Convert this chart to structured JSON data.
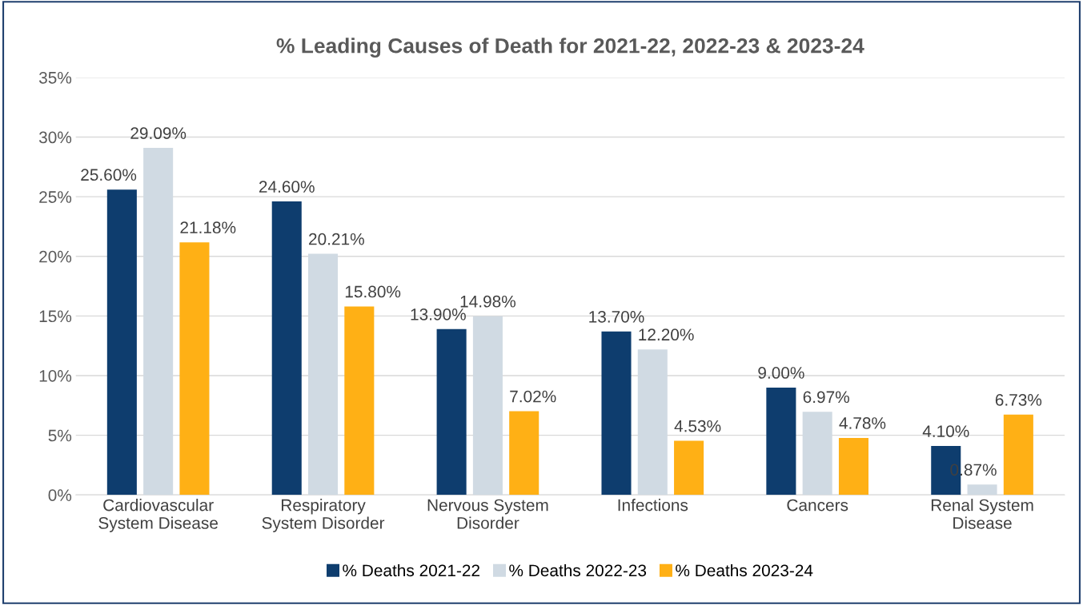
{
  "chart_data": {
    "type": "bar",
    "title": "% Leading Causes of Death for 2021-22, 2022-23 & 2023-24",
    "categories": [
      "Cardiovascular\nSystem Disease",
      "Respiratory\nSystem Disorder",
      "Nervous System\nDisorder",
      "Infections",
      "Cancers",
      "Renal System\nDisease"
    ],
    "series": [
      {
        "name": "% Deaths 2021-22",
        "color": "#0e3d6e",
        "values": [
          25.6,
          24.6,
          13.9,
          13.7,
          9.0,
          4.1
        ],
        "value_labels": [
          "25.60%",
          "24.60%",
          "13.90%",
          "13.70%",
          "9.00%",
          "4.10%"
        ]
      },
      {
        "name": "% Deaths 2022-23",
        "color": "#d0dae3",
        "values": [
          29.09,
          20.21,
          14.98,
          12.2,
          6.97,
          0.87
        ],
        "value_labels": [
          "29.09%",
          "20.21%",
          "14.98%",
          "12.20%",
          "6.97%",
          "0.87%"
        ]
      },
      {
        "name": "% Deaths 2023-24",
        "color": "#ffb015",
        "values": [
          21.18,
          15.8,
          7.02,
          4.53,
          4.78,
          6.73
        ],
        "value_labels": [
          "21.18%",
          "15.80%",
          "7.02%",
          "4.53%",
          "4.78%",
          "6.73%"
        ]
      }
    ],
    "ylim": [
      0,
      35
    ],
    "yticks": [
      {
        "value": 0,
        "label": "0%"
      },
      {
        "value": 5,
        "label": "5%"
      },
      {
        "value": 10,
        "label": "10%"
      },
      {
        "value": 15,
        "label": "15%"
      },
      {
        "value": 20,
        "label": "20%"
      },
      {
        "value": 25,
        "label": "25%"
      },
      {
        "value": 30,
        "label": "30%"
      },
      {
        "value": 35,
        "label": "35%"
      }
    ],
    "grid": "y",
    "legend": "bottom"
  }
}
